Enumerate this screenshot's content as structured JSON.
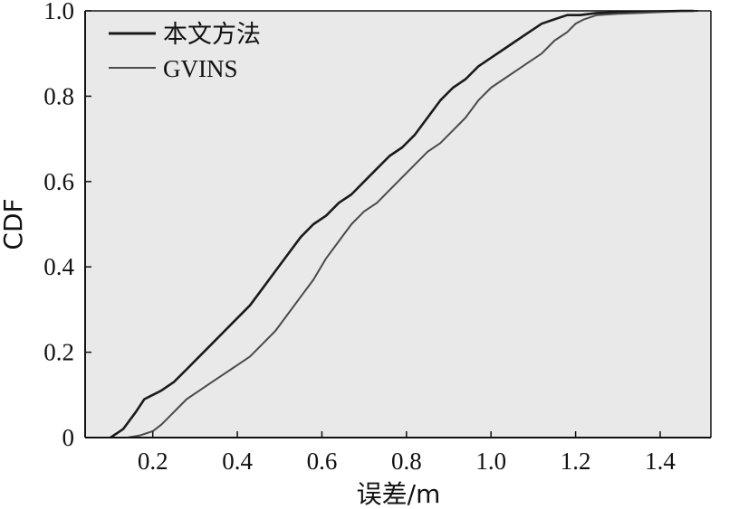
{
  "chart_data": {
    "type": "line",
    "xlabel": "误差/m",
    "ylabel": "CDF",
    "xlim": [
      0.04,
      1.52
    ],
    "ylim": [
      0,
      1.0
    ],
    "xticks": [
      "0.2",
      "0.4",
      "0.6",
      "0.8",
      "1.0",
      "1.2",
      "1.4"
    ],
    "yticks": [
      "0",
      "0.2",
      "0.4",
      "0.6",
      "0.8",
      "1.0"
    ],
    "grid": false,
    "legend_position": "top-left",
    "colors": {
      "background": "#e9e9e9",
      "series_a": "#1a1a1a",
      "series_b": "#4a4a4a"
    },
    "series": [
      {
        "name": "本文方法",
        "x": [
          0.1,
          0.13,
          0.16,
          0.18,
          0.2,
          0.22,
          0.25,
          0.28,
          0.31,
          0.34,
          0.37,
          0.4,
          0.43,
          0.46,
          0.49,
          0.52,
          0.55,
          0.58,
          0.61,
          0.64,
          0.67,
          0.7,
          0.73,
          0.76,
          0.79,
          0.82,
          0.85,
          0.88,
          0.91,
          0.94,
          0.97,
          1.0,
          1.03,
          1.06,
          1.09,
          1.12,
          1.15,
          1.18,
          1.21,
          1.25,
          1.3,
          1.35,
          1.4,
          1.45,
          1.48
        ],
        "y": [
          0.0,
          0.02,
          0.06,
          0.09,
          0.1,
          0.11,
          0.13,
          0.16,
          0.19,
          0.22,
          0.25,
          0.28,
          0.31,
          0.35,
          0.39,
          0.43,
          0.47,
          0.5,
          0.52,
          0.55,
          0.57,
          0.6,
          0.63,
          0.66,
          0.68,
          0.71,
          0.75,
          0.79,
          0.82,
          0.84,
          0.87,
          0.89,
          0.91,
          0.93,
          0.95,
          0.97,
          0.98,
          0.99,
          0.99,
          0.995,
          0.997,
          0.998,
          0.999,
          1.0,
          1.0
        ]
      },
      {
        "name": "GVINS",
        "x": [
          0.14,
          0.17,
          0.2,
          0.22,
          0.24,
          0.26,
          0.28,
          0.31,
          0.34,
          0.37,
          0.4,
          0.43,
          0.46,
          0.49,
          0.52,
          0.55,
          0.58,
          0.61,
          0.64,
          0.67,
          0.7,
          0.73,
          0.76,
          0.79,
          0.82,
          0.85,
          0.88,
          0.91,
          0.94,
          0.97,
          1.0,
          1.03,
          1.06,
          1.09,
          1.12,
          1.15,
          1.18,
          1.2,
          1.22,
          1.25,
          1.3,
          1.35,
          1.4,
          1.45,
          1.49
        ],
        "y": [
          0.0,
          0.005,
          0.015,
          0.03,
          0.05,
          0.07,
          0.09,
          0.11,
          0.13,
          0.15,
          0.17,
          0.19,
          0.22,
          0.25,
          0.29,
          0.33,
          0.37,
          0.42,
          0.46,
          0.5,
          0.53,
          0.55,
          0.58,
          0.61,
          0.64,
          0.67,
          0.69,
          0.72,
          0.75,
          0.79,
          0.82,
          0.84,
          0.86,
          0.88,
          0.9,
          0.93,
          0.95,
          0.97,
          0.98,
          0.99,
          0.993,
          0.995,
          0.997,
          0.999,
          1.0
        ]
      }
    ]
  }
}
